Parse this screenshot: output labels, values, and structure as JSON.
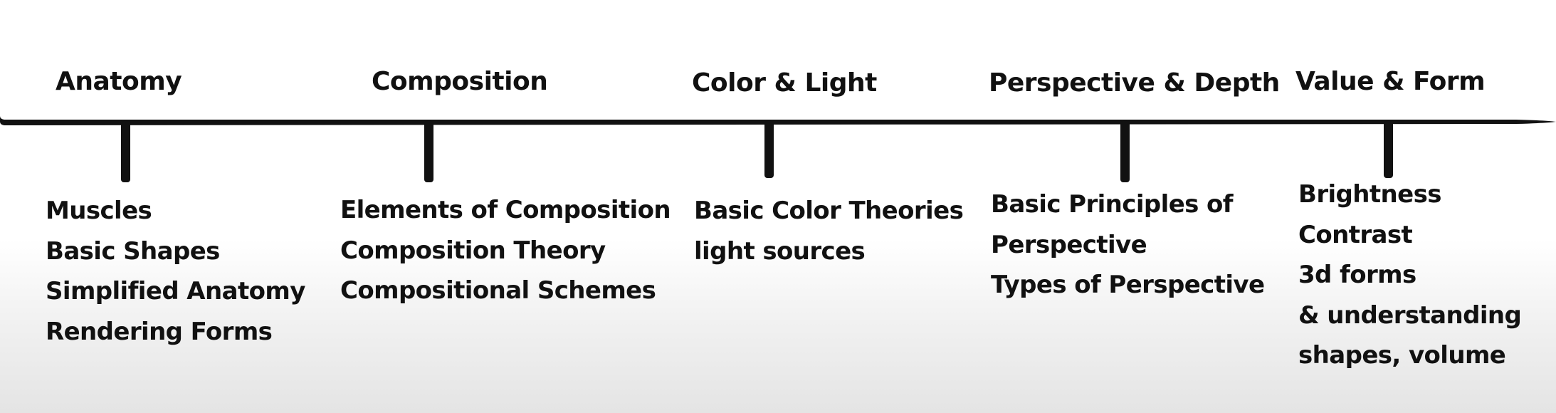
{
  "sections": [
    {
      "title": "Anatomy",
      "items": [
        "Muscles",
        "Basic Shapes",
        "Simplified Anatomy",
        "Rendering Forms"
      ]
    },
    {
      "title": "Composition",
      "items": [
        "Elements of Composition",
        "Composition Theory",
        "Compositional Schemes"
      ]
    },
    {
      "title": "Color & Light",
      "items": [
        "Basic Color Theories",
        "light sources"
      ]
    },
    {
      "title": "Perspective & Depth",
      "items": [
        "Basic Principles of",
        "Perspective",
        "Types of Perspective"
      ]
    },
    {
      "title": "Value & Form",
      "items": [
        "Brightness",
        "Contrast",
        "3d forms",
        "& understanding",
        "shapes, volume"
      ]
    }
  ],
  "colors": {
    "ink": "#111111",
    "background_top": "#ffffff",
    "background_bottom": "#e4e4e4"
  }
}
